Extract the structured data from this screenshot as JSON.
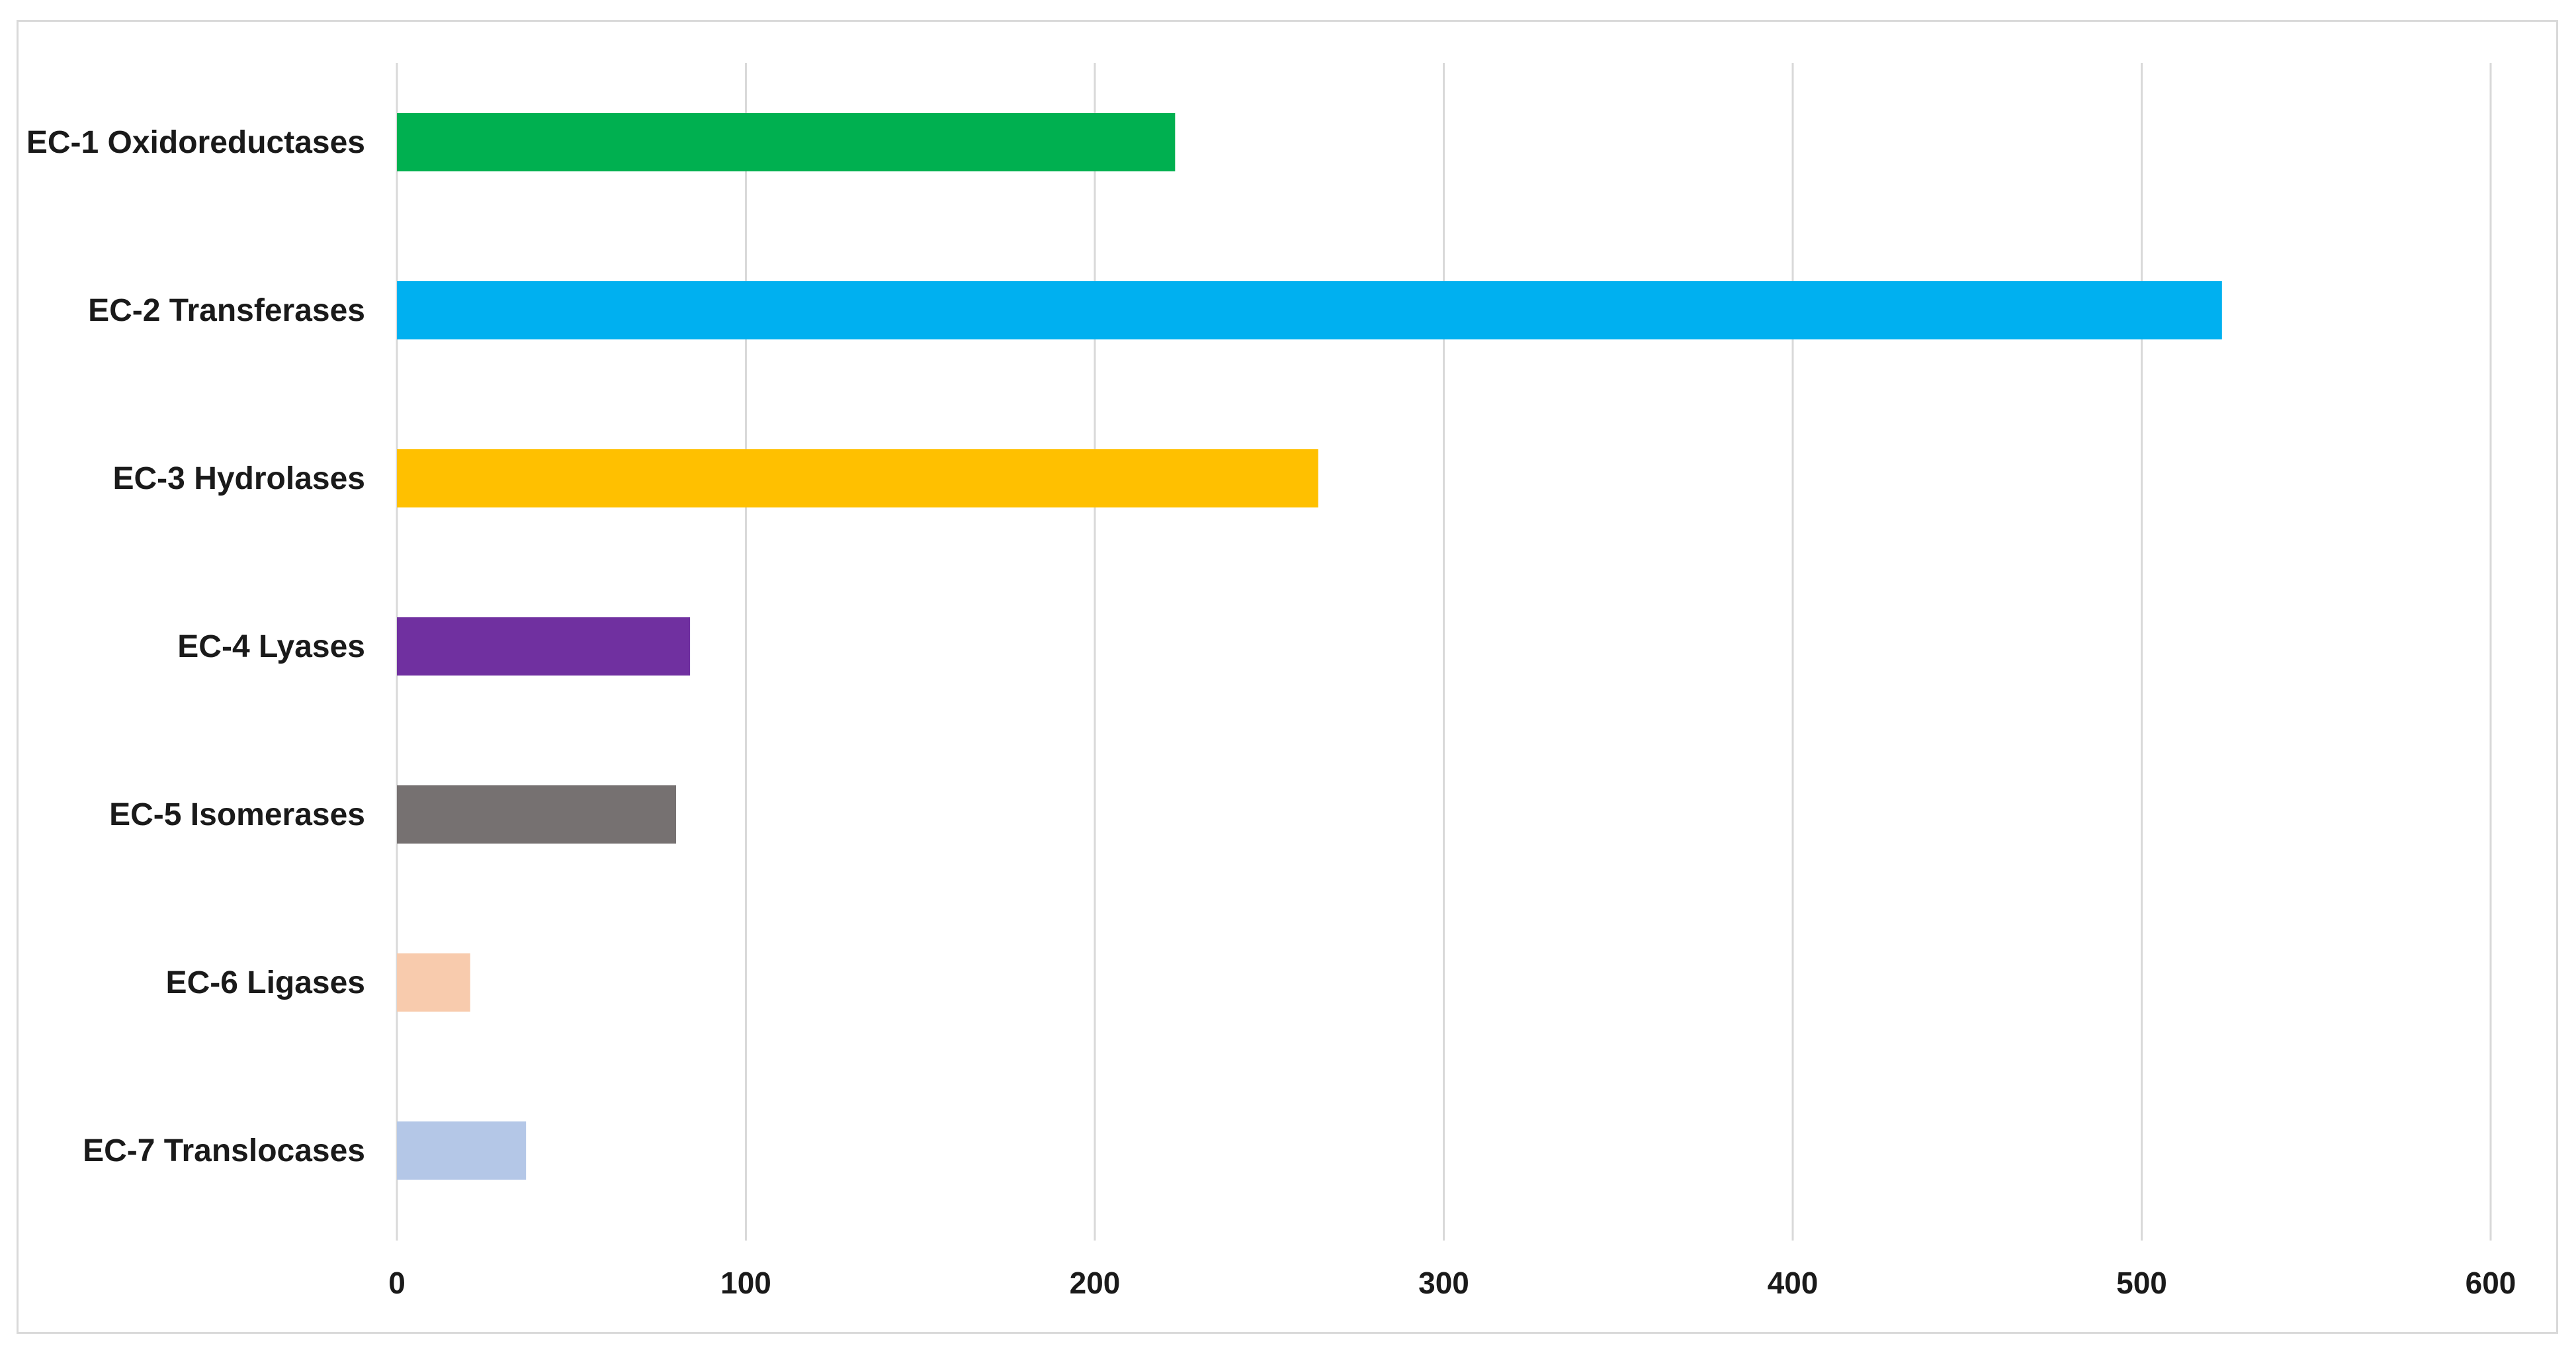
{
  "chart_data": {
    "type": "bar",
    "orientation": "horizontal",
    "categories": [
      "EC-1 Oxidoreductases",
      "EC-2 Transferases",
      "EC-3 Hydrolases",
      "EC-4 Lyases",
      "EC-5 Isomerases",
      "EC-6 Ligases",
      "EC-7 Translocases"
    ],
    "values": [
      223,
      523,
      264,
      84,
      80,
      21,
      37
    ],
    "colors": [
      "#00b050",
      "#00b0f0",
      "#ffc000",
      "#7030a0",
      "#767171",
      "#f8cbad",
      "#b4c7e7"
    ],
    "xlim": [
      0,
      600
    ],
    "xticks": [
      0,
      100,
      200,
      300,
      400,
      500,
      600
    ],
    "title": "",
    "xlabel": "",
    "ylabel": "",
    "grid": "vertical",
    "legend": "none"
  }
}
